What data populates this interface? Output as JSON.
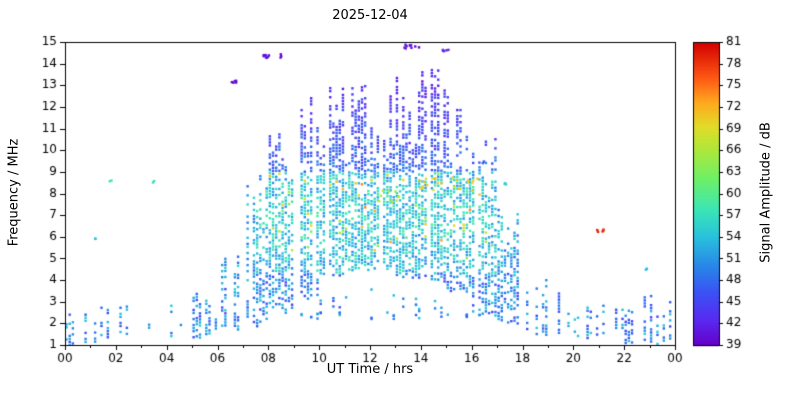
{
  "chart_data": {
    "type": "scatter",
    "title": "2025-12-04",
    "xlabel": "UT Time / hrs",
    "ylabel": "Frequency / MHz",
    "colorbar_label": "Signal Amplitude / dB",
    "xlim": [
      0,
      24
    ],
    "ylim": [
      1,
      15
    ],
    "xticks": [
      0,
      2,
      4,
      6,
      8,
      10,
      12,
      14,
      16,
      18,
      20,
      22,
      24
    ],
    "xtick_labels": [
      "00",
      "02",
      "04",
      "06",
      "08",
      "10",
      "12",
      "14",
      "16",
      "18",
      "20",
      "22",
      "00"
    ],
    "x_minor_ticks": [
      1,
      3,
      5,
      7,
      9,
      11,
      13,
      15,
      17,
      19,
      21,
      23
    ],
    "yticks": [
      1,
      2,
      3,
      4,
      5,
      6,
      7,
      8,
      9,
      10,
      11,
      12,
      13,
      14,
      15
    ],
    "colorbar": {
      "min": 39,
      "max": 81,
      "ticks": [
        39,
        42,
        45,
        48,
        51,
        54,
        57,
        60,
        63,
        66,
        69,
        72,
        75,
        78,
        81
      ],
      "stops": [
        [
          0.0,
          "#6400c8"
        ],
        [
          0.08,
          "#5a28f0"
        ],
        [
          0.17,
          "#3c50f5"
        ],
        [
          0.26,
          "#2887e8"
        ],
        [
          0.36,
          "#28c3dc"
        ],
        [
          0.45,
          "#3ce6b4"
        ],
        [
          0.55,
          "#6ef066"
        ],
        [
          0.64,
          "#aae83c"
        ],
        [
          0.72,
          "#e1dc28"
        ],
        [
          0.8,
          "#ffaa1e"
        ],
        [
          0.88,
          "#ff5a14"
        ],
        [
          1.0,
          "#d20000"
        ]
      ]
    },
    "seed": 20251204,
    "sampling": {
      "t_step": 0.125,
      "f_step": 0.14
    },
    "envelope": {
      "hours": [
        0,
        1,
        2,
        3,
        4,
        5,
        6,
        7,
        8,
        9,
        10,
        11,
        12,
        13,
        14,
        15,
        16,
        17,
        18,
        19,
        20,
        21,
        22,
        23
      ],
      "f_min": [
        1.0,
        1.2,
        1.6,
        1.5,
        1.4,
        1.4,
        1.8,
        2.0,
        2.6,
        3.2,
        4.2,
        4.6,
        4.6,
        4.2,
        4.0,
        3.6,
        2.6,
        2.0,
        1.6,
        1.4,
        1.4,
        1.5,
        1.2,
        1.0
      ],
      "f_max": [
        2.8,
        3.0,
        3.2,
        2.6,
        3.2,
        3.6,
        5.5,
        9.0,
        12.6,
        13.2,
        13.6,
        13.2,
        13.8,
        14.2,
        14.0,
        13.0,
        11.0,
        8.0,
        4.8,
        3.4,
        3.0,
        3.2,
        3.4,
        3.6
      ],
      "density": [
        0.45,
        0.5,
        0.4,
        0.3,
        0.55,
        0.6,
        0.65,
        0.8,
        0.9,
        0.92,
        0.92,
        0.92,
        0.92,
        0.92,
        0.92,
        0.9,
        0.85,
        0.8,
        0.7,
        0.5,
        0.45,
        0.5,
        0.6,
        0.6
      ],
      "fill": [
        0.5,
        0.5,
        0.45,
        0.4,
        0.5,
        0.55,
        0.5,
        0.5,
        0.55,
        0.58,
        0.6,
        0.6,
        0.6,
        0.6,
        0.6,
        0.55,
        0.5,
        0.5,
        0.5,
        0.45,
        0.45,
        0.5,
        0.55,
        0.55
      ]
    },
    "features": [
      {
        "t0": 6.55,
        "t1": 6.75,
        "f0": 13.1,
        "f1": 13.35,
        "amp": 40,
        "n": 6
      },
      {
        "t0": 7.75,
        "t1": 8.6,
        "f0": 14.25,
        "f1": 14.45,
        "amp": 40,
        "n": 10
      },
      {
        "t0": 13.35,
        "t1": 14.0,
        "f0": 14.7,
        "f1": 14.9,
        "amp": 40,
        "n": 10
      },
      {
        "t0": 14.85,
        "t1": 15.15,
        "f0": 14.5,
        "f1": 14.7,
        "amp": 42,
        "n": 5
      },
      {
        "t0": 13.6,
        "t1": 16.3,
        "f0": 8.1,
        "f1": 8.8,
        "amp": 70,
        "n": 22
      },
      {
        "t0": 12.3,
        "t1": 13.2,
        "f0": 7.6,
        "f1": 8.3,
        "amp": 66,
        "n": 10
      },
      {
        "t0": 20.9,
        "t1": 21.35,
        "f0": 6.2,
        "f1": 6.45,
        "amp": 79,
        "n": 5
      },
      {
        "t0": 1.7,
        "t1": 1.9,
        "f0": 8.4,
        "f1": 8.6,
        "amp": 58,
        "n": 2
      },
      {
        "t0": 3.45,
        "t1": 3.6,
        "f0": 8.5,
        "f1": 8.7,
        "amp": 57,
        "n": 2
      },
      {
        "t0": 1.1,
        "t1": 1.3,
        "f0": 5.9,
        "f1": 6.1,
        "amp": 55,
        "n": 2
      },
      {
        "t0": 22.8,
        "t1": 23.0,
        "f0": 4.4,
        "f1": 4.6,
        "amp": 54,
        "n": 2
      },
      {
        "t0": 17.2,
        "t1": 17.4,
        "f0": 8.4,
        "f1": 8.6,
        "amp": 55,
        "n": 3
      },
      {
        "t0": 16.3,
        "t1": 16.5,
        "f0": 9.3,
        "f1": 9.6,
        "amp": 47,
        "n": 3
      }
    ]
  }
}
